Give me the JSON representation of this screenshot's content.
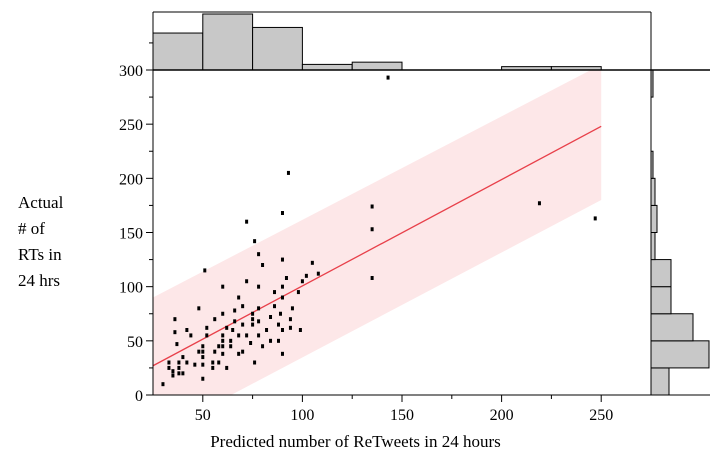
{
  "chart_data": {
    "type": "scatter",
    "title": "",
    "xlabel": "Predicted number of ReTweets in 24 hours",
    "ylabel_lines": [
      "Actual",
      "# of",
      "RTs in",
      "24 hrs"
    ],
    "xlim": [
      25,
      275
    ],
    "ylim": [
      0,
      340
    ],
    "x_ticks": [
      50,
      100,
      150,
      200,
      250
    ],
    "y_ticks": [
      0,
      50,
      100,
      150,
      200,
      250,
      300
    ],
    "fit_line": {
      "x": [
        25,
        250
      ],
      "y": [
        27,
        248
      ],
      "color": "#e8404a"
    },
    "confidence_band": {
      "x": [
        25,
        250
      ],
      "lower": [
        -38,
        180
      ],
      "upper": [
        90,
        305
      ],
      "color": "#fde7e8"
    },
    "points": [
      [
        30,
        10
      ],
      [
        33,
        25
      ],
      [
        33,
        30
      ],
      [
        35,
        22
      ],
      [
        35,
        18
      ],
      [
        36,
        70
      ],
      [
        36,
        58
      ],
      [
        37,
        47
      ],
      [
        38,
        30
      ],
      [
        38,
        25
      ],
      [
        38,
        20
      ],
      [
        40,
        35
      ],
      [
        40,
        20
      ],
      [
        42,
        60
      ],
      [
        42,
        30
      ],
      [
        44,
        55
      ],
      [
        46,
        28
      ],
      [
        48,
        40
      ],
      [
        48,
        80
      ],
      [
        50,
        45
      ],
      [
        50,
        40
      ],
      [
        50,
        35
      ],
      [
        50,
        28
      ],
      [
        50,
        15
      ],
      [
        51,
        115
      ],
      [
        52,
        62
      ],
      [
        52,
        55
      ],
      [
        55,
        30
      ],
      [
        55,
        25
      ],
      [
        56,
        40
      ],
      [
        56,
        70
      ],
      [
        58,
        45
      ],
      [
        58,
        30
      ],
      [
        60,
        100
      ],
      [
        60,
        75
      ],
      [
        60,
        55
      ],
      [
        60,
        50
      ],
      [
        60,
        45
      ],
      [
        60,
        38
      ],
      [
        62,
        62
      ],
      [
        62,
        25
      ],
      [
        64,
        50
      ],
      [
        64,
        45
      ],
      [
        65,
        60
      ],
      [
        66,
        78
      ],
      [
        66,
        68
      ],
      [
        68,
        90
      ],
      [
        68,
        55
      ],
      [
        68,
        38
      ],
      [
        70,
        82
      ],
      [
        70,
        65
      ],
      [
        70,
        40
      ],
      [
        72,
        160
      ],
      [
        72,
        105
      ],
      [
        72,
        55
      ],
      [
        74,
        48
      ],
      [
        75,
        75
      ],
      [
        75,
        70
      ],
      [
        75,
        65
      ],
      [
        76,
        30
      ],
      [
        76,
        142
      ],
      [
        78,
        130
      ],
      [
        78,
        100
      ],
      [
        78,
        80
      ],
      [
        78,
        68
      ],
      [
        78,
        55
      ],
      [
        80,
        45
      ],
      [
        80,
        120
      ],
      [
        82,
        60
      ],
      [
        84,
        72
      ],
      [
        84,
        50
      ],
      [
        86,
        95
      ],
      [
        86,
        82
      ],
      [
        88,
        65
      ],
      [
        88,
        50
      ],
      [
        89,
        75
      ],
      [
        90,
        125
      ],
      [
        90,
        100
      ],
      [
        90,
        90
      ],
      [
        90,
        60
      ],
      [
        90,
        38
      ],
      [
        90,
        168
      ],
      [
        92,
        108
      ],
      [
        93,
        205
      ],
      [
        94,
        70
      ],
      [
        94,
        62
      ],
      [
        95,
        80
      ],
      [
        98,
        95
      ],
      [
        99,
        60
      ],
      [
        100,
        105
      ],
      [
        102,
        110
      ],
      [
        105,
        122
      ],
      [
        108,
        112
      ],
      [
        135,
        174
      ],
      [
        135,
        153
      ],
      [
        135,
        108
      ],
      [
        143,
        293
      ],
      [
        219,
        177
      ],
      [
        247,
        163
      ]
    ],
    "x_histogram": {
      "bin_edges": [
        25,
        50,
        75,
        100,
        125,
        150,
        175,
        200,
        225,
        250
      ],
      "counts": [
        33,
        50,
        38,
        5,
        7,
        0,
        0,
        3,
        3
      ]
    },
    "y_histogram": {
      "bin_edges": [
        0,
        25,
        50,
        75,
        100,
        125,
        150,
        175,
        200,
        225,
        250,
        275,
        300
      ],
      "counts": [
        9,
        29,
        21,
        10,
        10,
        2,
        3,
        2,
        1,
        0,
        0,
        1
      ],
      "max_count": 29
    },
    "series_color": "#000000",
    "hist_fill": "#c8c8c8"
  }
}
